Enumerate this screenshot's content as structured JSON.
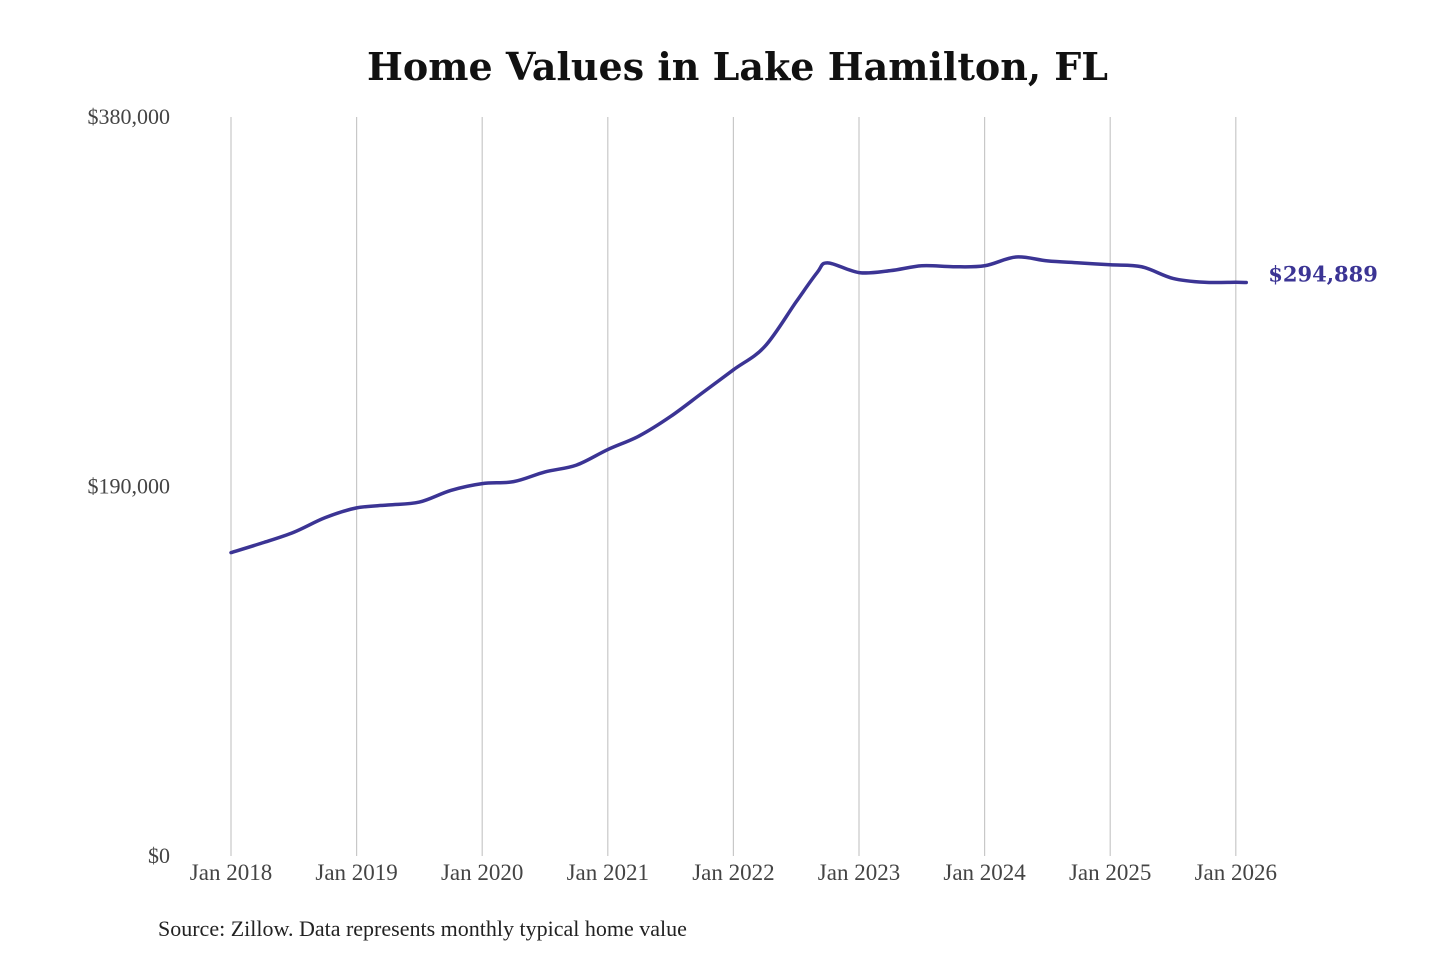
{
  "chart_data": {
    "type": "line",
    "title": "Home Values in Lake Hamilton, FL",
    "xlabel": "",
    "ylabel": "",
    "ylim": [
      0,
      380000
    ],
    "yticks": [
      0,
      190000,
      380000
    ],
    "ytick_labels": [
      "$0",
      "$190,000",
      "$380,000"
    ],
    "xticks": [
      "2018-01",
      "2019-01",
      "2020-01",
      "2021-01",
      "2022-01",
      "2023-01",
      "2024-01",
      "2025-01",
      "2026-01"
    ],
    "xtick_labels": [
      "Jan 2018",
      "Jan 2019",
      "Jan 2020",
      "Jan 2021",
      "Jan 2022",
      "Jan 2023",
      "Jan 2024",
      "Jan 2025",
      "Jan 2026"
    ],
    "grid": "vertical",
    "color": "#3b3494",
    "end_label": "$294,889",
    "x": [
      "2018-01",
      "2018-04",
      "2018-07",
      "2018-10",
      "2019-01",
      "2019-04",
      "2019-07",
      "2019-10",
      "2020-01",
      "2020-04",
      "2020-07",
      "2020-10",
      "2021-01",
      "2021-04",
      "2021-07",
      "2021-10",
      "2022-01",
      "2022-04",
      "2022-07",
      "2022-09",
      "2022-10",
      "2023-01",
      "2023-04",
      "2023-07",
      "2023-10",
      "2024-01",
      "2024-04",
      "2024-07",
      "2024-10",
      "2025-01",
      "2025-04",
      "2025-07",
      "2025-10",
      "2026-01",
      "2026-02"
    ],
    "values": [
      156000,
      161000,
      166500,
      174000,
      179000,
      180500,
      182000,
      188000,
      191500,
      192500,
      197500,
      201000,
      209000,
      216000,
      226000,
      238000,
      250000,
      262000,
      285000,
      300000,
      305000,
      300000,
      301000,
      303500,
      303000,
      303500,
      308000,
      306000,
      305000,
      304000,
      303000,
      297000,
      295000,
      295000,
      294889
    ]
  },
  "source": "Source: Zillow. Data represents monthly typical home value"
}
